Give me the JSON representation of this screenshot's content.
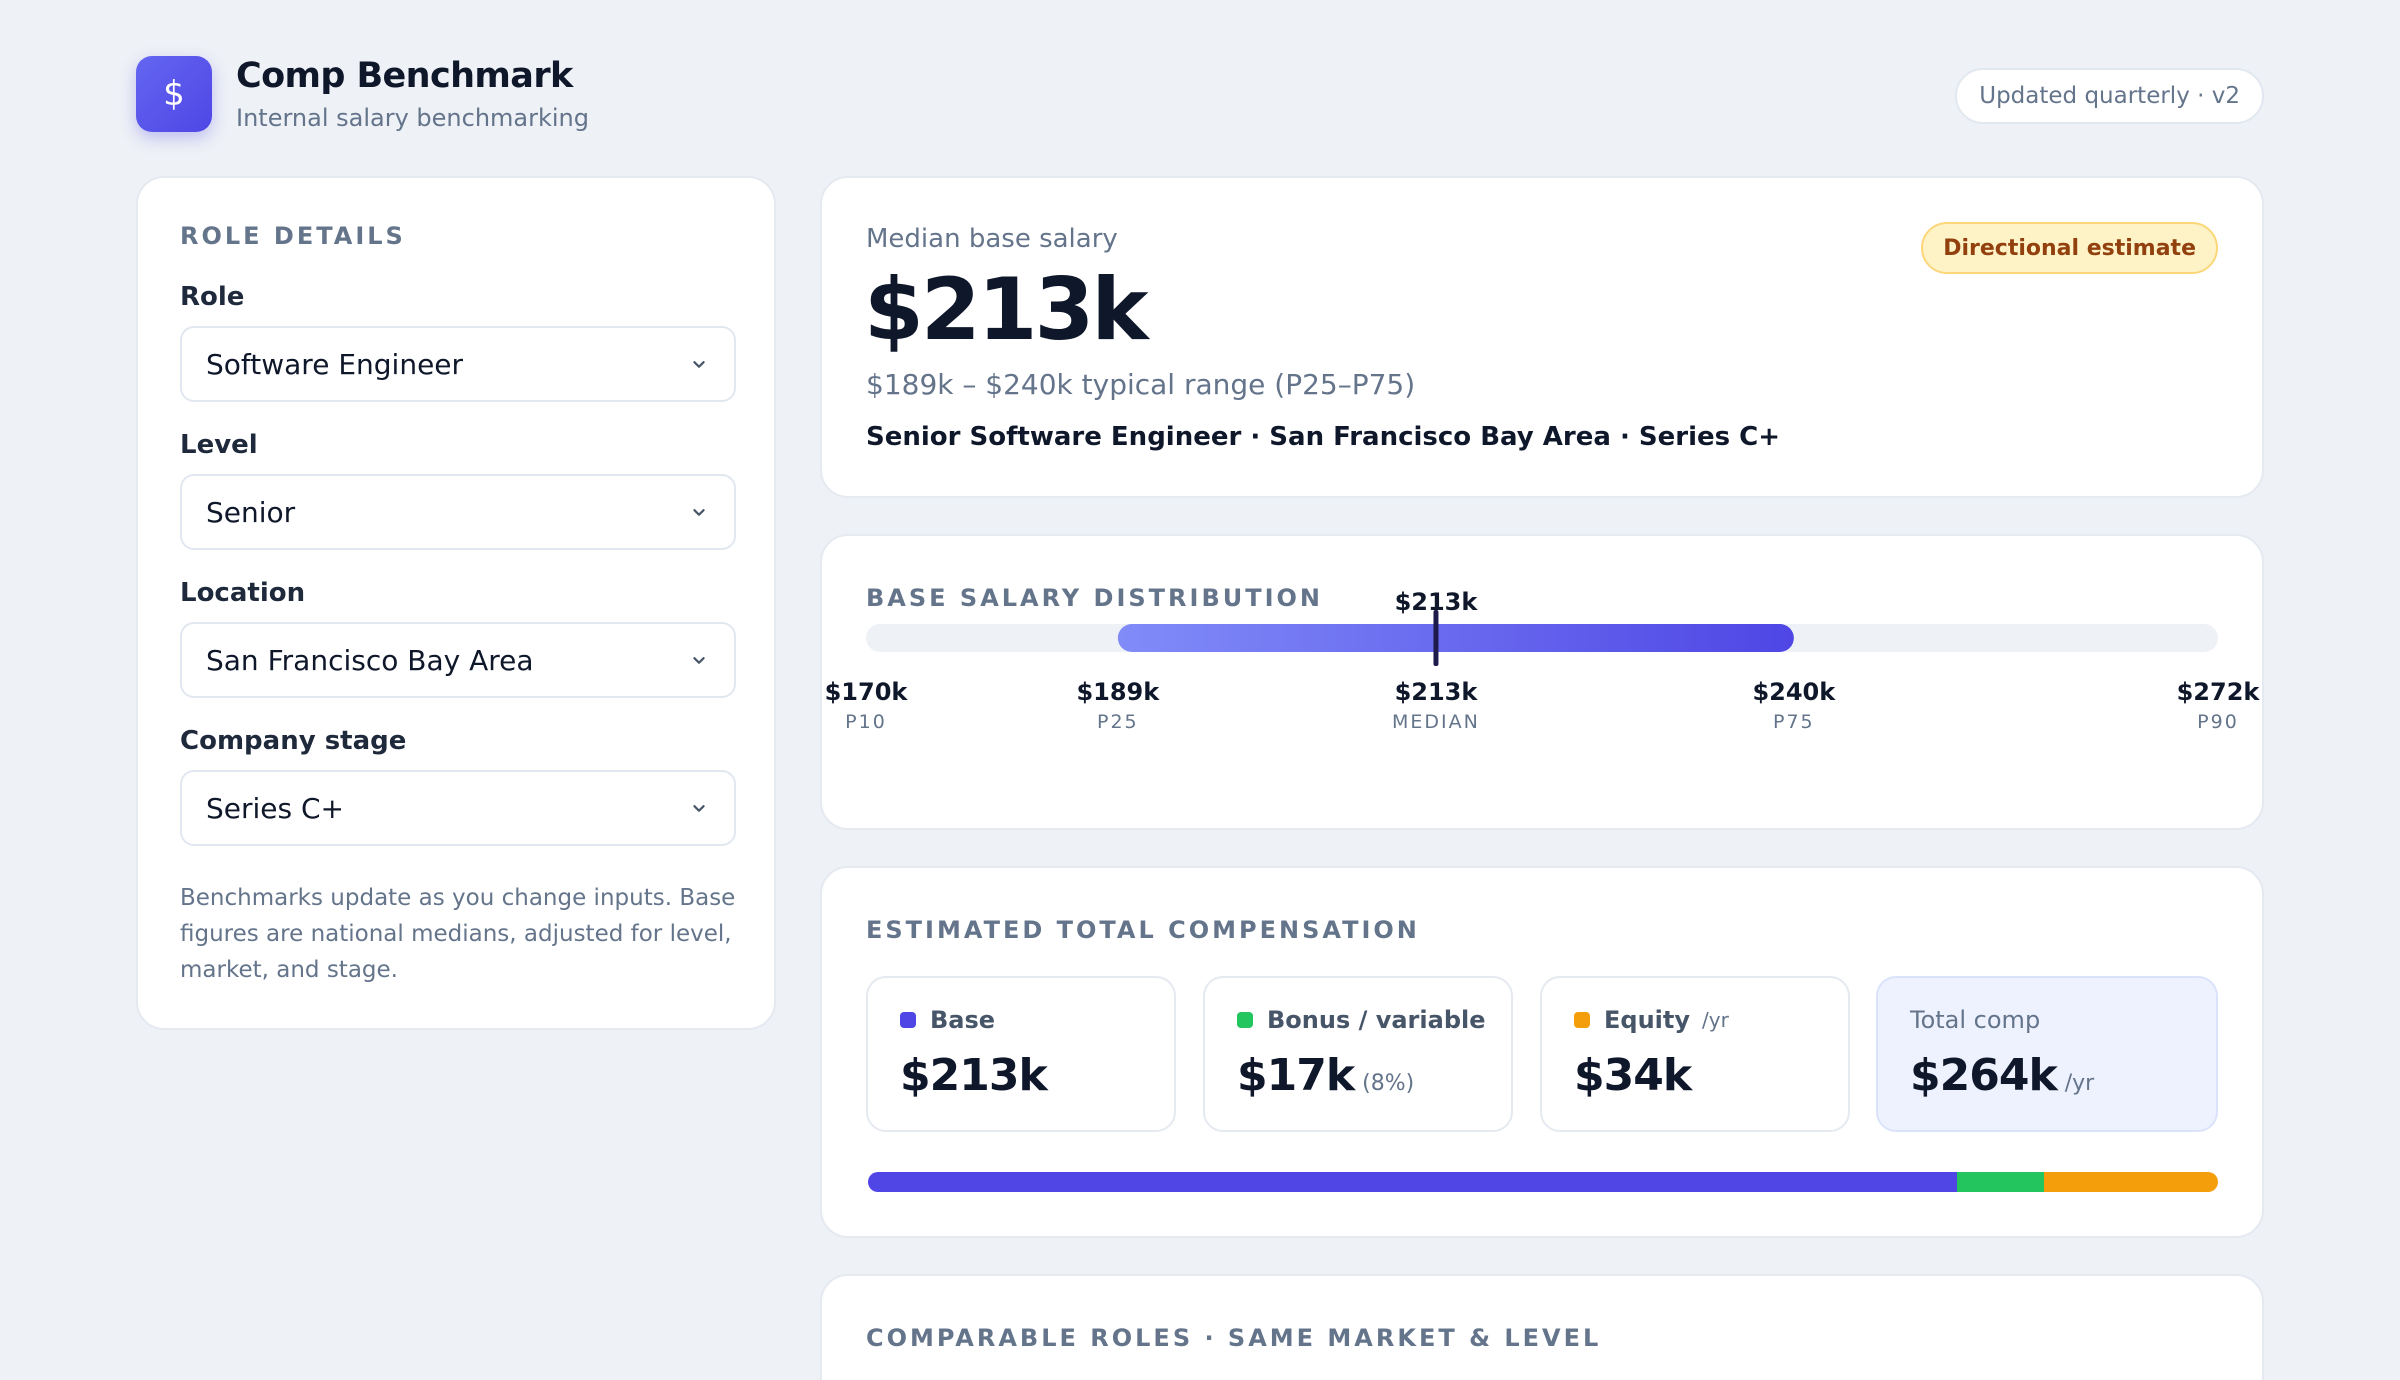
{
  "header": {
    "logo_symbol": "$",
    "title": "Comp Benchmark",
    "subtitle": "Internal salary benchmarking",
    "version_pill": "Updated quarterly · v2"
  },
  "role_details": {
    "section_label": "ROLE DETAILS",
    "fields": [
      {
        "label": "Role",
        "value": "Software Engineer"
      },
      {
        "label": "Level",
        "value": "Senior"
      },
      {
        "label": "Location",
        "value": "San Francisco Bay Area"
      },
      {
        "label": "Company stage",
        "value": "Series C+"
      }
    ],
    "help_text": "Benchmarks update as you change inputs. Base figures are national medians, adjusted for level, market, and stage."
  },
  "median": {
    "label": "Median base salary",
    "value": "$213k",
    "range": "$189k – $240k typical range (P25–P75)",
    "context": "Senior Software Engineer · San Francisco Bay Area · Series C+",
    "badge": "Directional estimate"
  },
  "distribution": {
    "section_label": "BASE SALARY DISTRIBUTION",
    "marker_label": "$213k",
    "range_min_k": 170,
    "range_max_k": 272,
    "markers": [
      {
        "value_k": 170,
        "value": "$170k",
        "label": "P10"
      },
      {
        "value_k": 189,
        "value": "$189k",
        "label": "P25"
      },
      {
        "value_k": 213,
        "value": "$213k",
        "label": "MEDIAN"
      },
      {
        "value_k": 240,
        "value": "$240k",
        "label": "P75"
      },
      {
        "value_k": 272,
        "value": "$272k",
        "label": "P90"
      }
    ]
  },
  "total_comp": {
    "section_label": "ESTIMATED TOTAL COMPENSATION",
    "base": {
      "label": "Base",
      "value": "$213k",
      "color": "#4f46e5",
      "amount_k": 213
    },
    "bonus": {
      "label": "Bonus / variable",
      "value": "$17k",
      "suffix": "(8%)",
      "color": "#22c55e",
      "amount_k": 17
    },
    "equity": {
      "label": "Equity",
      "unit": "/yr",
      "value": "$34k",
      "color": "#f59e0b",
      "amount_k": 34
    },
    "total": {
      "label": "Total comp",
      "value": "$264k",
      "suffix": "/yr"
    }
  },
  "comparable": {
    "section_label": "COMPARABLE ROLES · SAME MARKET & LEVEL"
  },
  "colors": {
    "accent": "#4f46e5",
    "accent_light": "#818cf8",
    "track": "#eef1f6",
    "badge_bg": "#fef3c7",
    "badge_text": "#92400e"
  }
}
